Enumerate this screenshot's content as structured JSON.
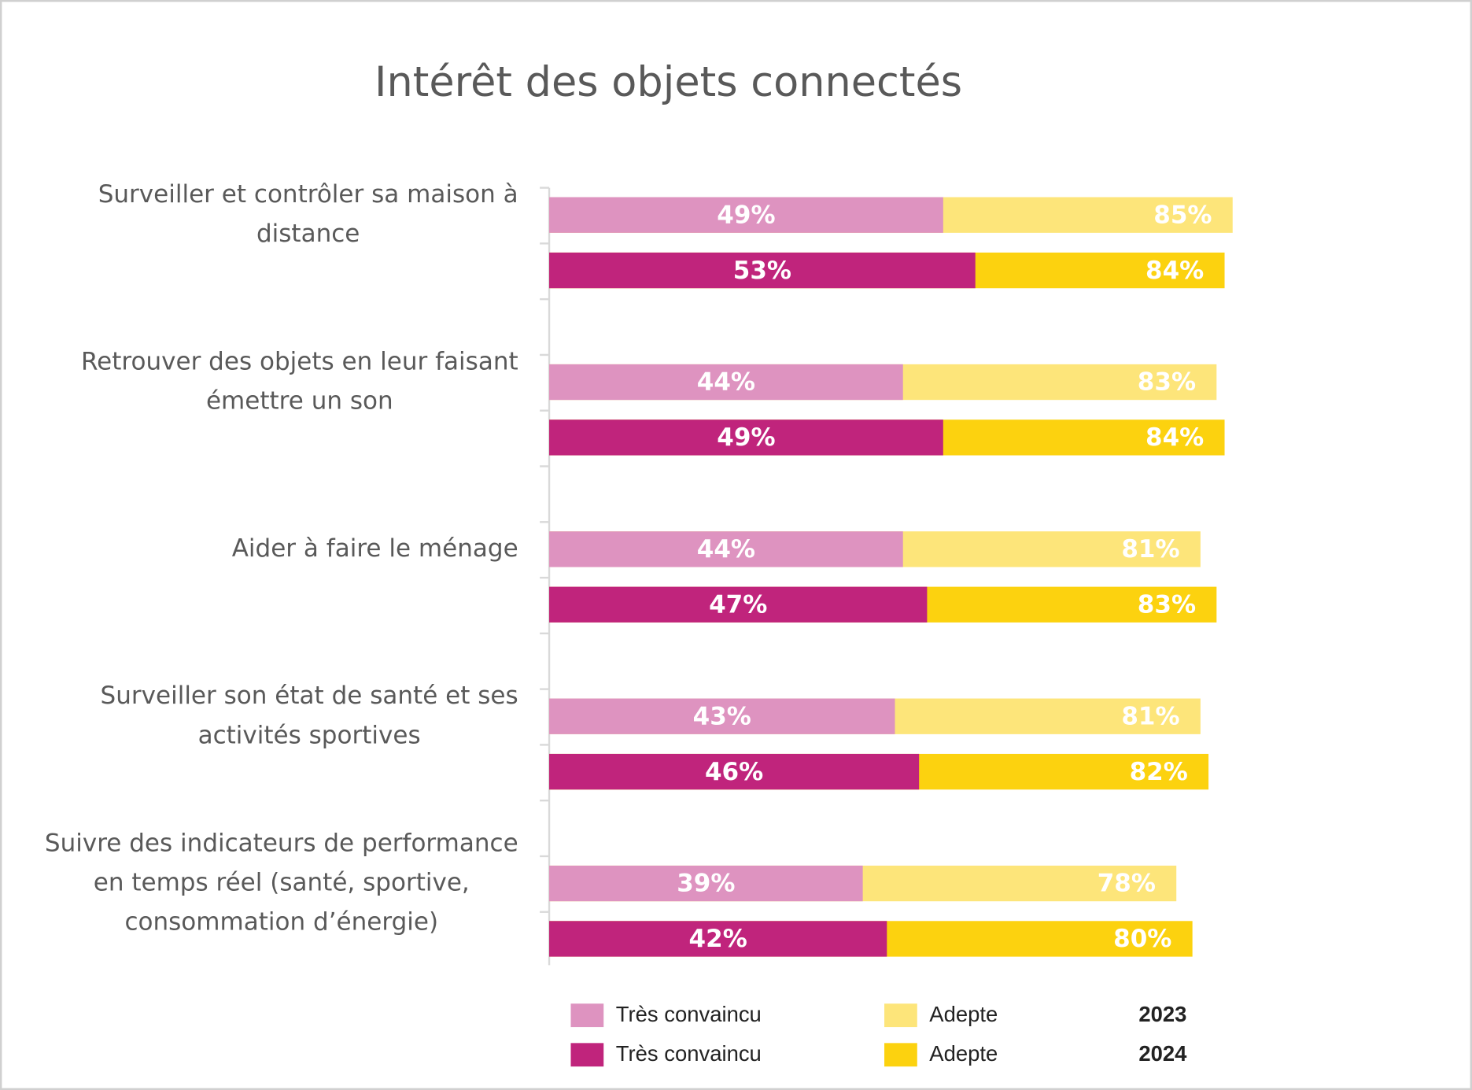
{
  "chart_data": {
    "type": "bar",
    "orientation": "horizontal",
    "title": "Intérêt des objets connectés",
    "categories": [
      "Surveiller et contrôler sa maison à distance",
      "Retrouver des objets en leur faisant émettre un son",
      "Aider à faire le ménage",
      "Surveiller son état de santé et ses activités sportives",
      "Suivre des indicateurs de performance en temps réel (santé, sportive, consommation d’énergie)"
    ],
    "series": [
      {
        "name": "Très convaincu",
        "color": "#de93c0",
        "values": [
          49,
          44,
          44,
          43,
          39
        ],
        "value_labels": [
          "49%",
          "44%",
          "44%",
          "43%",
          "39%"
        ]
      },
      {
        "name": "Adepte",
        "color": "#fde57a",
        "values": [
          85,
          83,
          81,
          81,
          78
        ],
        "value_labels": [
          "85%",
          "83%",
          "81%",
          "81%",
          "78%"
        ]
      },
      {
        "name": "Très convaincu",
        "color": "#c0247c",
        "values": [
          53,
          49,
          47,
          46,
          42
        ],
        "value_labels": [
          "53%",
          "49%",
          "47%",
          "46%",
          "42%"
        ]
      },
      {
        "name": "Adepte",
        "color": "#fcd20f",
        "values": [
          84,
          84,
          83,
          82,
          80
        ],
        "value_labels": [
          "84%",
          "84%",
          "83%",
          "82%",
          "80%"
        ]
      }
    ],
    "legend_groups": [
      "2023",
      "2024"
    ],
    "xlim": [
      0,
      100
    ]
  }
}
